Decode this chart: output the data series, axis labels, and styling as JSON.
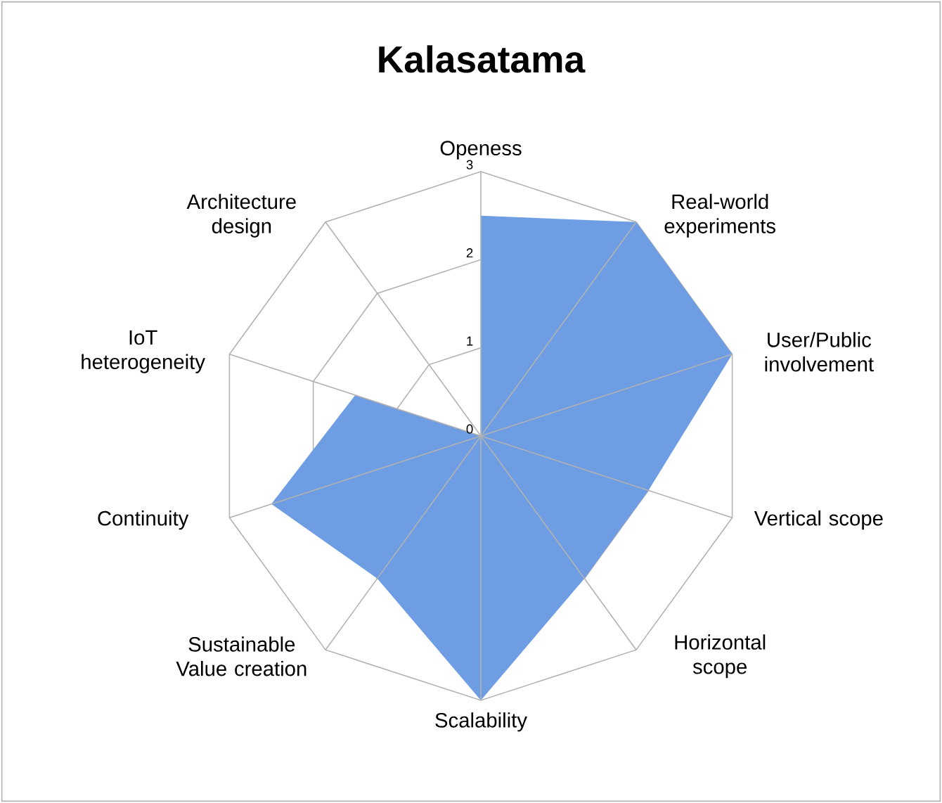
{
  "chart_data": {
    "type": "radar",
    "title": "Kalasatama",
    "categories": [
      "Openess",
      "Real-world experiments",
      "User/Public involvement",
      "Vertical scope",
      "Horizontal scope",
      "Scalability",
      "Sustainable Value creation",
      "Continuity",
      "IoT heterogeneity",
      "Architecture design"
    ],
    "series": [
      {
        "color": "#6f9de3",
        "values": [
          2.5,
          3,
          3,
          2,
          2,
          3,
          2,
          2.5,
          1.5,
          0
        ]
      }
    ],
    "ylim": [
      0,
      3
    ],
    "yticks": [
      0,
      1,
      2,
      3
    ],
    "grid": true
  }
}
